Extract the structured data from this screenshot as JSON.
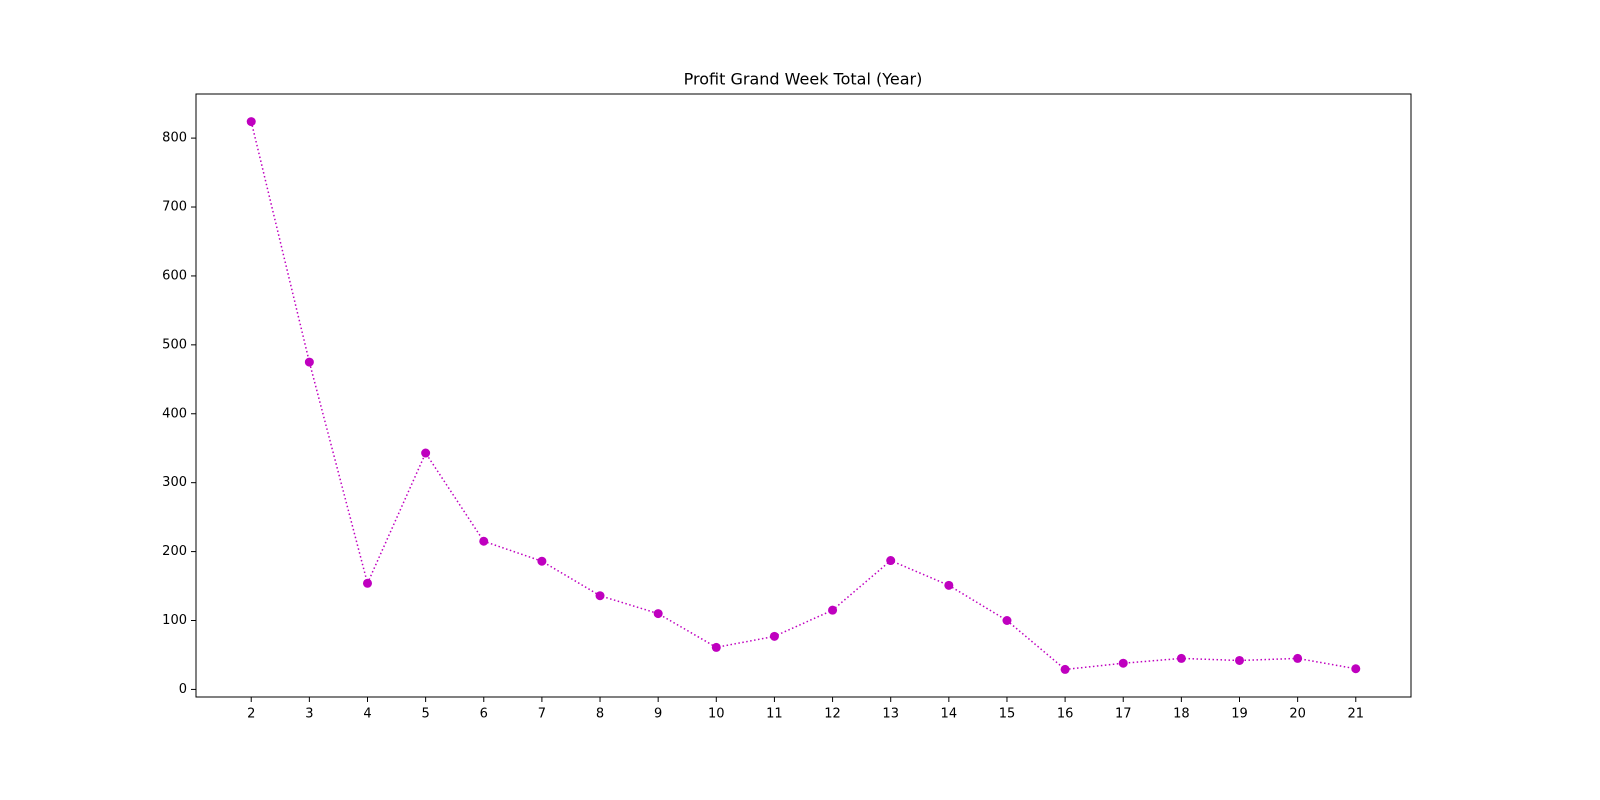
{
  "chart_data": {
    "type": "line",
    "title": "Profit Grand Week Total (Year)",
    "x": [
      2,
      3,
      4,
      5,
      6,
      7,
      8,
      9,
      10,
      11,
      12,
      13,
      14,
      15,
      16,
      17,
      18,
      19,
      20,
      21
    ],
    "series": [
      {
        "color": "#bf00bf",
        "linestyle": "dotted",
        "marker": "circle",
        "values": [
          824,
          475,
          154,
          343,
          215,
          186,
          136,
          110,
          61,
          77,
          115,
          187,
          151,
          100,
          29,
          38,
          45,
          42,
          45,
          30
        ]
      }
    ],
    "xlim": [
      1.05,
      21.95
    ],
    "xticks": [
      2,
      3,
      4,
      5,
      6,
      7,
      8,
      9,
      10,
      11,
      12,
      13,
      14,
      15,
      16,
      17,
      18,
      19,
      20,
      21
    ],
    "ylim": [
      -11,
      864
    ],
    "yticks": [
      0,
      100,
      200,
      300,
      400,
      500,
      600,
      700,
      800
    ],
    "grid": false
  }
}
